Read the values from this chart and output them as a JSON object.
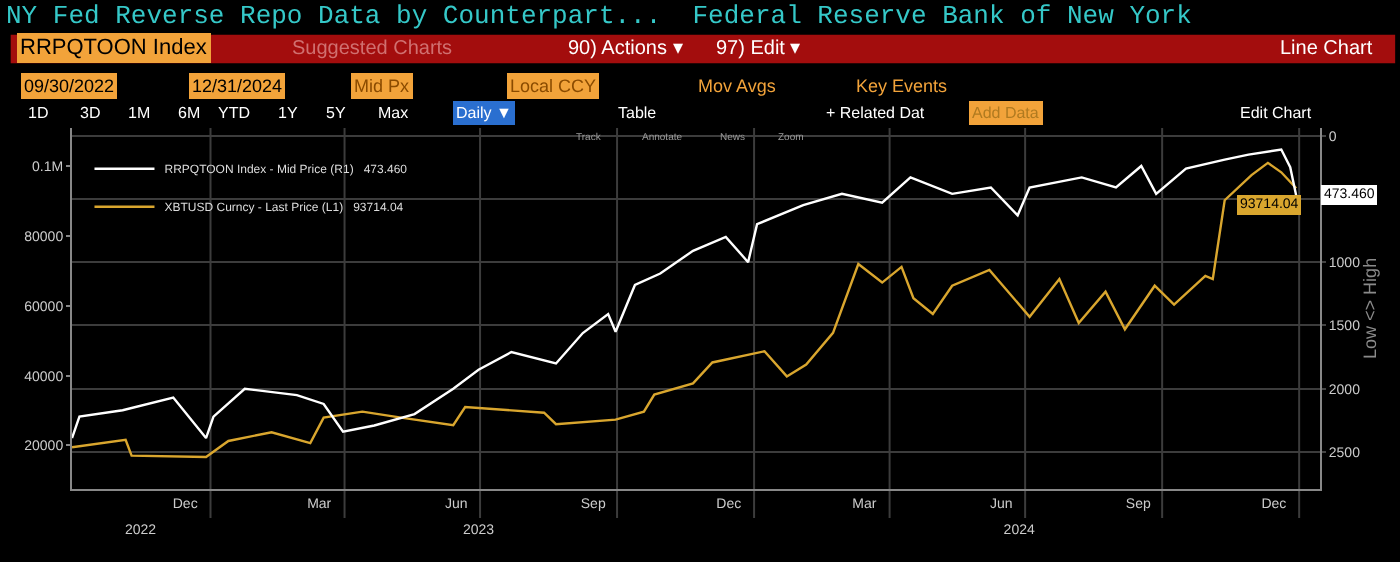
{
  "chart_data": {
    "type": "line",
    "title": "NY Fed Reverse Repo Data by Counterpart...  Federal Reserve Bank of New York",
    "y2label": "Low <> High",
    "annotations": [
      "RRPQTOON Index",
      "Suggested Charts",
      "90) Actions ▾",
      "97) Edit ▾",
      "Line Chart",
      "09/30/2022",
      "12/31/2024",
      "Mid Px",
      "Local CCY",
      "Mov Avgs",
      "Key Events",
      "1D",
      "3D",
      "1M",
      "6M",
      "YTD",
      "1Y",
      "5Y",
      "Max",
      "Daily ▼",
      "Table",
      "+ Related Dat",
      "Add Data",
      "Edit Chart",
      "Track",
      "Annotate",
      "News",
      "Zoom"
    ],
    "series": [
      {
        "name": "RRPQTOON Index - Mid Price (R1)   473.460",
        "color": "#ffffff",
        "axis": "y2",
        "x": [
          "2022-09-30",
          "2022-10-05",
          "2022-11-03",
          "2022-12-07",
          "2022-12-29",
          "2023-01-03",
          "2023-01-24",
          "2023-02-28",
          "2023-03-18",
          "2023-03-31",
          "2023-04-21",
          "2023-05-18",
          "2023-06-13",
          "2023-06-30",
          "2023-07-22",
          "2023-08-21",
          "2023-09-08",
          "2023-09-25",
          "2023-09-30",
          "2023-10-13",
          "2023-10-30",
          "2023-11-21",
          "2023-12-13",
          "2023-12-28",
          "2024-01-03",
          "2024-02-03",
          "2024-02-29",
          "2024-03-27",
          "2024-04-15",
          "2024-05-13",
          "2024-06-08",
          "2024-06-26",
          "2024-07-04",
          "2024-08-08",
          "2024-08-31",
          "2024-09-17",
          "2024-09-27",
          "2024-10-17",
          "2024-11-12",
          "2024-11-28",
          "2024-12-20",
          "2024-12-26",
          "2024-12-30"
        ],
        "values": [
          2390,
          2220,
          2170,
          2070,
          2390,
          2220,
          2000,
          2050,
          2120,
          2340,
          2290,
          2200,
          2000,
          1850,
          1710,
          1800,
          1560,
          1410,
          1550,
          1180,
          1090,
          910,
          800,
          1000,
          700,
          550,
          460,
          530,
          330,
          460,
          410,
          630,
          410,
          330,
          410,
          240,
          460,
          260,
          190,
          150,
          110,
          250,
          473.46
        ],
        "value_labels": [
          null,
          null,
          null,
          null,
          null,
          null,
          null,
          null,
          null,
          null,
          null,
          null,
          null,
          null,
          null,
          null,
          null,
          null,
          null,
          null,
          null,
          null,
          null,
          null,
          null,
          null,
          null,
          null,
          null,
          null,
          null,
          null,
          null,
          null,
          null,
          null,
          null,
          null,
          null,
          null,
          null,
          null,
          "473.460"
        ]
      },
      {
        "name": "XBTUSD Curncy - Last Price (L1)   93714.04",
        "color": "#d9a62e",
        "axis": "y",
        "x": [
          "2022-09-30",
          "2022-11-05",
          "2022-11-09",
          "2022-12-29",
          "2023-01-13",
          "2023-02-11",
          "2023-03-09",
          "2023-03-18",
          "2023-04-13",
          "2023-05-09",
          "2023-06-13",
          "2023-06-21",
          "2023-08-13",
          "2023-08-21",
          "2023-09-30",
          "2023-10-19",
          "2023-10-26",
          "2023-11-21",
          "2023-12-04",
          "2024-01-08",
          "2024-01-23",
          "2024-02-05",
          "2024-02-23",
          "2024-03-11",
          "2024-03-27",
          "2024-04-09",
          "2024-04-17",
          "2024-04-30",
          "2024-05-13",
          "2024-06-07",
          "2024-07-04",
          "2024-07-24",
          "2024-08-06",
          "2024-08-24",
          "2024-09-06",
          "2024-09-26",
          "2024-10-09",
          "2024-10-30",
          "2024-11-04",
          "2024-11-12",
          "2024-11-30",
          "2024-12-11",
          "2024-12-20",
          "2024-12-30"
        ],
        "values": [
          19500,
          21600,
          17100,
          16700,
          21300,
          23800,
          20700,
          28000,
          29700,
          28000,
          25800,
          31000,
          29400,
          26100,
          27400,
          29700,
          34600,
          37800,
          43800,
          47000,
          39800,
          43200,
          52300,
          72000,
          66700,
          71200,
          62200,
          57700,
          65800,
          70300,
          56900,
          67700,
          55100,
          64100,
          53300,
          65800,
          60400,
          68600,
          67700,
          90300,
          97500,
          101000,
          98300,
          93714.04
        ],
        "value_labels": [
          null,
          null,
          null,
          null,
          null,
          null,
          null,
          null,
          null,
          null,
          null,
          null,
          null,
          null,
          null,
          null,
          null,
          null,
          null,
          null,
          null,
          null,
          null,
          null,
          null,
          null,
          null,
          null,
          null,
          null,
          null,
          null,
          null,
          null,
          null,
          null,
          null,
          null,
          null,
          null,
          null,
          null,
          null,
          "93714.04"
        ]
      }
    ],
    "xlim": [
      "2022-09-30",
      "2025-01-15"
    ],
    "xticks": [
      {
        "value": "2022-12-15",
        "label": "Dec"
      },
      {
        "value": "2023-03-15",
        "label": "Mar"
      },
      {
        "value": "2023-06-15",
        "label": "Jun"
      },
      {
        "value": "2023-09-15",
        "label": "Sep"
      },
      {
        "value": "2023-12-15",
        "label": "Dec"
      },
      {
        "value": "2024-03-15",
        "label": "Mar"
      },
      {
        "value": "2024-06-15",
        "label": "Jun"
      },
      {
        "value": "2024-09-15",
        "label": "Sep"
      },
      {
        "value": "2024-12-15",
        "label": "Dec"
      },
      {
        "value": "2023-01-01",
        "label": null
      },
      {
        "value": "2023-04-01",
        "label": null
      },
      {
        "value": "2023-07-01",
        "label": null
      },
      {
        "value": "2023-10-01",
        "label": null
      },
      {
        "value": "2024-01-01",
        "label": null
      },
      {
        "value": "2024-04-01",
        "label": null
      },
      {
        "value": "2024-07-01",
        "label": null
      },
      {
        "value": "2024-10-01",
        "label": null
      },
      {
        "value": "2025-01-01",
        "label": null
      }
    ],
    "x2lim": [
      "2022-09-30",
      "2025-01-15"
    ],
    "x2ticks": [
      {
        "value": "2022-11-15",
        "label": "2022"
      },
      {
        "value": "2023-06-30",
        "label": "2023"
      },
      {
        "value": "2024-06-27",
        "label": "2024"
      }
    ],
    "ylim": [
      7600,
      111000
    ],
    "yticks": [
      20000,
      40000,
      60000,
      80000,
      {
        "value": 100000,
        "label": "0.1M"
      }
    ],
    "y2lim": [
      2790,
      -60
    ],
    "y2ticks": [
      0,
      {
        "value": 500,
        "label": null
      },
      1000,
      1500,
      2000,
      2500
    ],
    "grid": true,
    "legend": "top left",
    "marker": "none",
    "line_style": "solid"
  }
}
